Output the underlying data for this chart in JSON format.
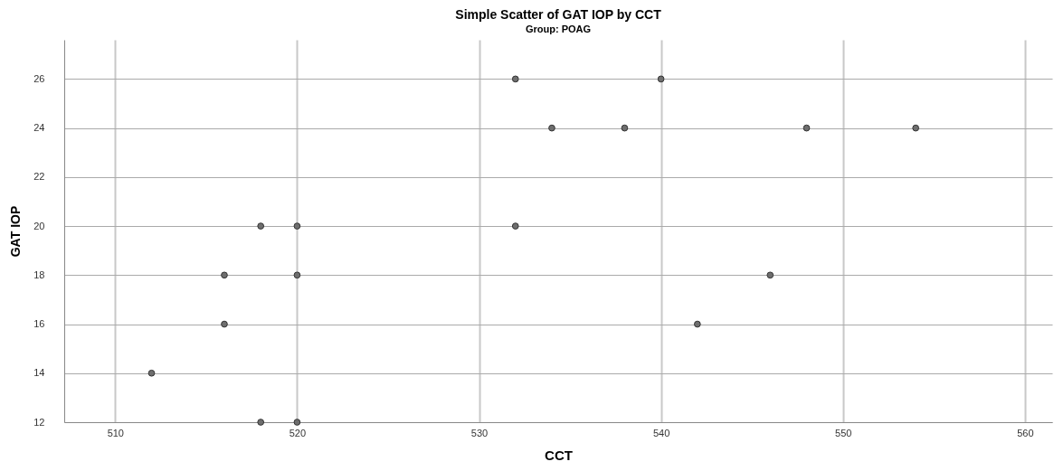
{
  "chart_data": {
    "type": "scatter",
    "title": "Simple Scatter of GAT IOP by CCT",
    "subtitle": "Group: POAG",
    "xlabel": "CCT",
    "ylabel": "GAT IOP",
    "x": [
      532,
      540,
      534,
      538,
      548,
      554,
      518,
      520,
      532,
      516,
      520,
      546,
      516,
      542,
      512,
      518,
      520
    ],
    "series": [
      {
        "color": "#6e6e6e",
        "values": [
          26,
          26,
          24,
          24,
          24,
          24,
          20,
          20,
          20,
          18,
          18,
          18,
          16,
          16,
          14,
          12,
          12
        ]
      }
    ],
    "xlim": [
      507.2,
      561.5
    ],
    "ylim": [
      12,
      27.6
    ],
    "xticks": [
      510,
      520,
      530,
      540,
      550,
      560
    ],
    "yticks": [
      12,
      14,
      16,
      18,
      20,
      22,
      24,
      26
    ],
    "grid": true,
    "marker": "circle"
  }
}
